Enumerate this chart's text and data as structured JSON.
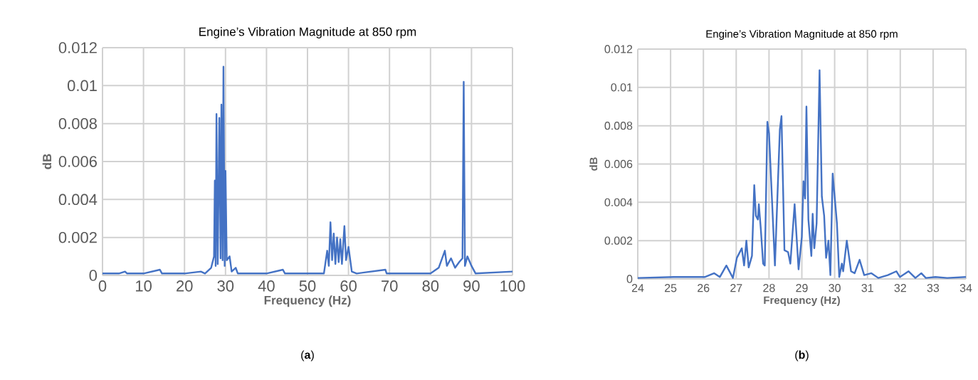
{
  "chart_data": [
    {
      "type": "line",
      "title": "Engine’s Vibration Magnitude at 850 rpm",
      "xlabel": "Frequency (Hz)",
      "ylabel": "dB",
      "annotations": [
        "(**a**)"
      ],
      "x": [
        0,
        4,
        5.5,
        6,
        10,
        14,
        14.5,
        20,
        24,
        25,
        26.5,
        27.2,
        27.4,
        27.6,
        27.8,
        28.1,
        28.5,
        28.8,
        29,
        29.3,
        29.5,
        29.8,
        30,
        30.3,
        31,
        31.5,
        32.5,
        33,
        40,
        44,
        44.5,
        54,
        54.8,
        55.2,
        55.6,
        56,
        56.4,
        56.8,
        57.2,
        57.6,
        58,
        58.4,
        59,
        59.4,
        60,
        60.8,
        62,
        69,
        69.3,
        80,
        82,
        83.5,
        84,
        85,
        86,
        87,
        87.8,
        88.1,
        88.4,
        89,
        90,
        91,
        100
      ],
      "series": [
        {
          "color": "#4472c4",
          "values": [
            0.0001,
            0.0001,
            0.0002,
            0.0001,
            0.0001,
            0.0003,
            0.0001,
            0.0001,
            0.0002,
            0.0001,
            0.0004,
            0.001,
            0.005,
            0.0005,
            0.0085,
            0.0006,
            0.0083,
            0.0009,
            0.009,
            0.0008,
            0.011,
            0.0005,
            0.0055,
            0.0008,
            0.001,
            0.0002,
            0.0004,
            0.0001,
            0.0001,
            0.0003,
            0.0001,
            0.0001,
            0.0013,
            0.0005,
            0.0028,
            0.0008,
            0.0022,
            0.0006,
            0.002,
            0.0007,
            0.0019,
            0.0006,
            0.0026,
            0.0008,
            0.0015,
            0.0002,
            0.0001,
            0.0003,
            0.0001,
            0.0001,
            0.0004,
            0.0013,
            0.0005,
            0.0009,
            0.0004,
            0.0007,
            0.0009,
            0.0102,
            0.0005,
            0.001,
            0.0005,
            0.0001,
            0.0002
          ]
        }
      ],
      "xlim": [
        0,
        100
      ],
      "xticks": [
        0,
        10,
        20,
        30,
        40,
        50,
        60,
        70,
        80,
        90,
        100
      ],
      "ylim": [
        0,
        0.012
      ],
      "yticks": [
        0,
        0.002,
        0.004,
        0.006,
        0.008,
        0.01,
        0.012
      ],
      "grid": true
    },
    {
      "type": "line",
      "title": "Engine’s Vibration Magnitude at 850 rpm",
      "xlabel": "Frequency (Hz)",
      "ylabel": "dB",
      "annotations": [
        "(**b**)"
      ],
      "x": [
        24,
        25.1,
        26.04,
        26.33,
        26.5,
        26.7,
        26.9,
        27.02,
        27.17,
        27.24,
        27.31,
        27.38,
        27.48,
        27.55,
        27.6,
        27.66,
        27.69,
        27.75,
        27.82,
        27.87,
        27.95,
        28.0,
        28.18,
        28.33,
        28.38,
        28.47,
        28.58,
        28.65,
        28.78,
        28.9,
        29.0,
        29.05,
        29.1,
        29.14,
        29.2,
        29.29,
        29.33,
        29.38,
        29.45,
        29.54,
        29.61,
        29.68,
        29.74,
        29.81,
        29.87,
        29.94,
        30.07,
        30.14,
        30.22,
        30.26,
        30.37,
        30.5,
        30.61,
        30.76,
        30.9,
        31.12,
        31.33,
        31.62,
        31.88,
        31.99,
        32.25,
        32.46,
        32.64,
        32.78,
        33.07,
        33.43,
        34.0
      ],
      "series": [
        {
          "color": "#4472c4",
          "values": [
            5e-05,
            0.0001,
            0.0001,
            0.0003,
            0.0001,
            0.0007,
            5e-05,
            0.0011,
            0.0016,
            0.0007,
            0.002,
            0.0006,
            0.0012,
            0.0049,
            0.0033,
            0.0031,
            0.0039,
            0.0026,
            0.0008,
            0.0007,
            0.0082,
            0.0076,
            0.0007,
            0.0078,
            0.0085,
            0.0015,
            0.0014,
            0.0008,
            0.0039,
            0.0005,
            0.0022,
            0.0051,
            0.0042,
            0.009,
            0.0031,
            0.0012,
            0.0034,
            0.0016,
            0.0029,
            0.0109,
            0.0043,
            0.0033,
            0.0011,
            0.002,
            0.0002,
            0.0055,
            0.0029,
            0.0001,
            0.0008,
            0.0004,
            0.002,
            0.0004,
            0.0003,
            0.001,
            0.0002,
            0.0003,
            5e-05,
            0.0002,
            0.0004,
            0.0001,
            0.0004,
            5e-05,
            0.0003,
            5e-05,
            0.0001,
            5e-05,
            0.0001
          ]
        }
      ],
      "xlim": [
        24,
        34
      ],
      "xticks": [
        24,
        25,
        26,
        27,
        28,
        29,
        30,
        31,
        32,
        33,
        34
      ],
      "ylim": [
        0,
        0.012
      ],
      "yticks": [
        0,
        0.002,
        0.004,
        0.006,
        0.008,
        0.01,
        0.012
      ],
      "grid": true
    }
  ]
}
